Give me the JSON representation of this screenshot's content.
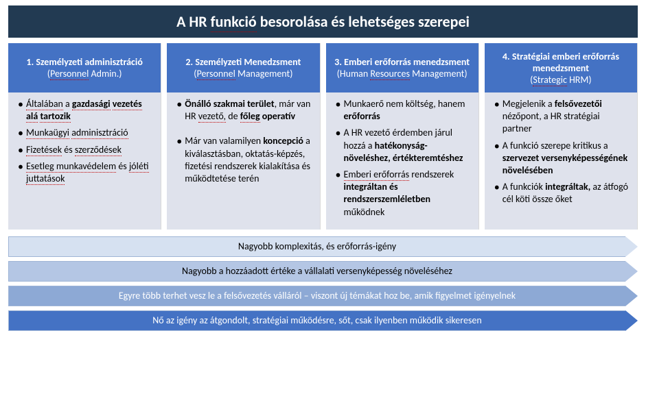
{
  "title": "A HR funkció besorolása és lehetséges szerepei",
  "columns": [
    {
      "header_title": "1. Személyzeti adminisztráció",
      "header_sub": "(Personnel Admin.)",
      "items_html": [
        "<span class='rd'>Általában</span> a <b><span class='rd'>gazdasági</span> <span class='rd'>vezetés</span> <span class='rd'>alá</span> <span class='rd'>tartozik</span></b>",
        "<span class='rd'>Munkaügyi</span> <span class='rd'>adminisztráció</span>",
        "<span class='rd'>Fizetések</span> és <span class='rd'>szerződések</span>",
        "<span class='rd'>Esetleg munkavédelem</span> és <span class='rd'>jóléti juttatások</span>"
      ]
    },
    {
      "header_title": "2. Személyzeti Menedzsment",
      "header_sub": "(Personnel Management)",
      "items_html": [
        "<b>Önálló szakmai terület</b>, már van HR <span class='rd'>vezető,</span> de <b><span class='rd'>főleg</span> operatív</b>",
        "Már van valamilyen <b>koncepció</b> a kiválasztásban, oktatás-képzés, fizetési rendszerek kialakítása és működtetése terén"
      ],
      "spaced": true
    },
    {
      "header_title": "3. Emberi erőforrás menedzsment",
      "header_sub": "(Human Resources Management)",
      "items_html": [
        "Munkaerő nem költség, hanem <b>erőforrás</b>",
        "A HR vezető érdemben járul hozzá a <b>hatékonyság-növeléshez, értékteremtéshez</b>",
        "<span class='rd'>Emberi erőforrás</span> rendszerek <b>integráltan és rendszerszemléletben</b> működnek"
      ]
    },
    {
      "header_title": "4. Stratégiai emberi erőforrás menedzsment",
      "header_sub": "(Strategic HRM)",
      "items_html": [
        "Megjelenik a <b>felsővezetői</b> nézőpont, a HR stratégiai partner",
        "A funkció szerepe kritikus a <b>szervezet versenyképességének növelésében</b>",
        "A funkciók <b>integráltak,</b> az átfogó cél köti össze őket"
      ]
    }
  ],
  "arrows": [
    {
      "text": "Nagyobb komplexitás, és erőforrás-igény",
      "bg": "#d6e1f1",
      "text_color": "#000000"
    },
    {
      "text": "Nagyobb a hozzáadott értéke a vállalati versenyképesség növeléséhez",
      "bg": "#b4c6e4",
      "text_color": "#000000"
    },
    {
      "text": "Egyre több terhet vesz le a felsővezetés válláról – viszont új témákat hoz be, amik figyelmet igényelnek",
      "bg": "#8da9d5",
      "text_color": "#ffffff"
    },
    {
      "text": "Nő az igény az átgondolt, stratégiai működésre, sőt, csak ilyenben működik sikeresen",
      "bg": "#4472c4",
      "text_color": "#ffffff"
    }
  ],
  "colors": {
    "title_bg": "#223a52",
    "header_bg": "#4472c4",
    "body_bg": "#dfe2ec",
    "dotted_underline": "#c00000"
  }
}
